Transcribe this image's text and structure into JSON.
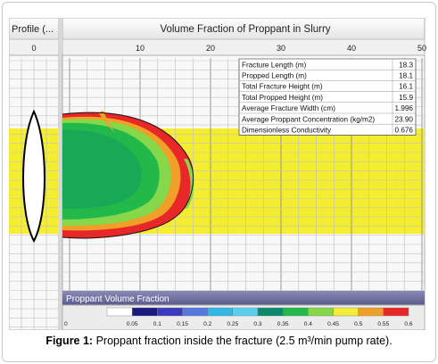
{
  "chart_data": {
    "type": "heatmap",
    "left_panel_title": "Profile (...",
    "title": "Volume Fraction of Proppant in Slurry",
    "left_axis_ticks": [
      "0"
    ],
    "x_ticks": [
      10,
      20,
      30,
      40,
      50
    ],
    "xlim": [
      0,
      50
    ],
    "grid": true,
    "pay_zone_color": "#f5ee30",
    "stats": [
      {
        "label": "Fracture Length (m)",
        "value": "18.3"
      },
      {
        "label": "Propped Length (m)",
        "value": "18.1"
      },
      {
        "label": "Total Fracture Height (m)",
        "value": "16.1"
      },
      {
        "label": "Total Propped Height (m)",
        "value": "15.9"
      },
      {
        "label": "Average Fracture Width (cm)",
        "value": "1.996"
      },
      {
        "label": "Average Proppant Concentration (kg/m2)",
        "value": "23.90"
      },
      {
        "label": "Dimensionless Conductivity",
        "value": "0.676"
      }
    ],
    "legend": {
      "title": "Proppant Volume Fraction",
      "ticks": [
        "0",
        "0.05",
        "0.1",
        "0.15",
        "0.2",
        "0.25",
        "0.3",
        "0.35",
        "0.4",
        "0.45",
        "0.5",
        "0.55",
        "0.6"
      ],
      "colors": [
        "#ffffff",
        "#1a1a80",
        "#3a3ac0",
        "#5577e0",
        "#30b8e8",
        "#5ad0f0",
        "#0a8a6a",
        "#22b84a",
        "#86d84a",
        "#f2ee3a",
        "#f0a028",
        "#e82828",
        "#cc1818"
      ]
    }
  },
  "caption": {
    "label": "Figure 1:",
    "text": "Proppant fraction inside the fracture (2.5 m³/min pump rate)."
  }
}
